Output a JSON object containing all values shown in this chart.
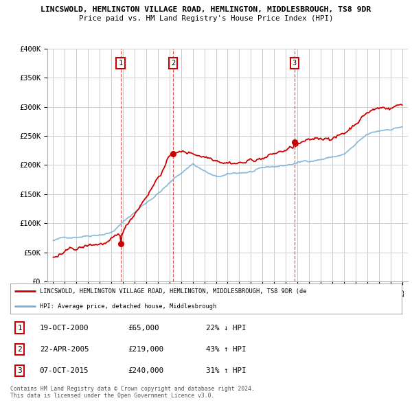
{
  "title_line1": "LINCSWOLD, HEMLINGTON VILLAGE ROAD, HEMLINGTON, MIDDLESBROUGH, TS8 9DR",
  "title_line2": "Price paid vs. HM Land Registry's House Price Index (HPI)",
  "ylim": [
    0,
    400000
  ],
  "yticks": [
    0,
    50000,
    100000,
    150000,
    200000,
    250000,
    300000,
    350000,
    400000
  ],
  "ytick_labels": [
    "£0",
    "£50K",
    "£100K",
    "£150K",
    "£200K",
    "£250K",
    "£300K",
    "£350K",
    "£400K"
  ],
  "transactions": [
    {
      "date_num": 2000.8,
      "price": 65000,
      "label": "1",
      "direction": "↓",
      "pct": "22%",
      "date_str": "19-OCT-2000",
      "price_str": "£65,000"
    },
    {
      "date_num": 2005.3,
      "price": 219000,
      "label": "2",
      "direction": "↑",
      "pct": "43%",
      "date_str": "22-APR-2005",
      "price_str": "£219,000"
    },
    {
      "date_num": 2015.75,
      "price": 240000,
      "label": "3",
      "direction": "↑",
      "pct": "31%",
      "date_str": "07-OCT-2015",
      "price_str": "£240,000"
    }
  ],
  "legend_line1": "LINCSWOLD, HEMLINGTON VILLAGE ROAD, HEMLINGTON, MIDDLESBROUGH, TS8 9DR (de",
  "legend_line2": "HPI: Average price, detached house, Middlesbrough",
  "footer_line1": "Contains HM Land Registry data © Crown copyright and database right 2024.",
  "footer_line2": "This data is licensed under the Open Government Licence v3.0.",
  "red_color": "#cc0000",
  "blue_color": "#7ab0d4",
  "grid_color": "#cccccc",
  "background_color": "#ffffff"
}
